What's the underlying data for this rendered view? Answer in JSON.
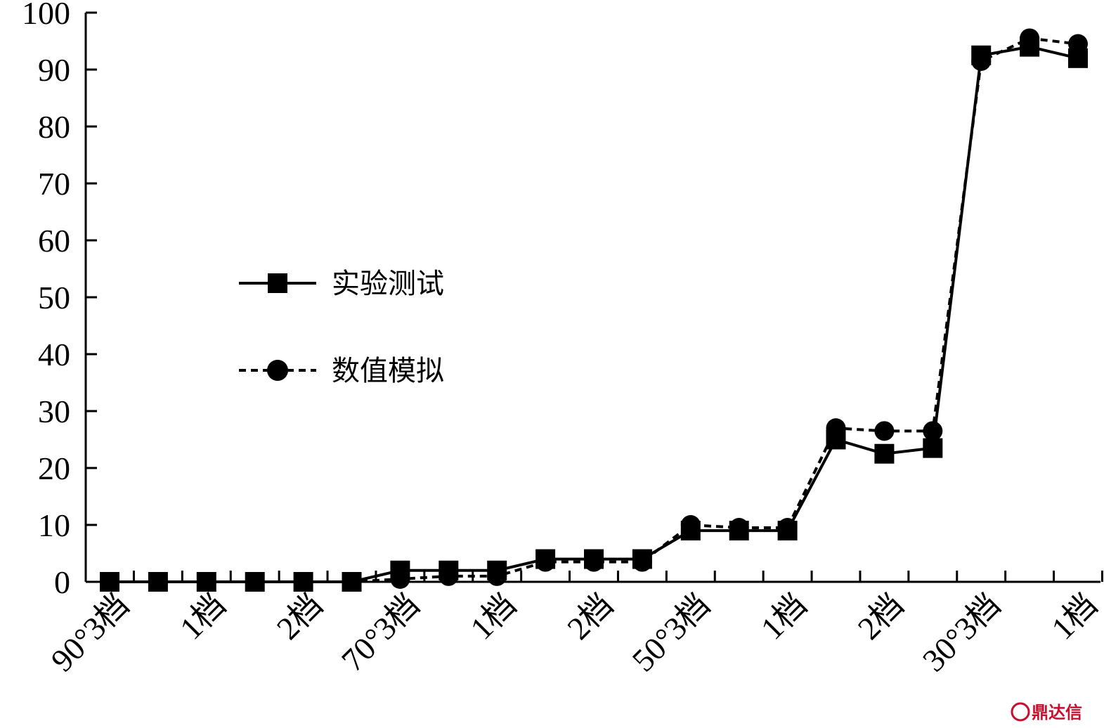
{
  "chart_data": {
    "type": "line",
    "title": "",
    "xlabel": "",
    "ylabel": "",
    "ylim": [
      0,
      100
    ],
    "yticks": [
      0,
      10,
      20,
      30,
      40,
      50,
      60,
      70,
      80,
      90,
      100
    ],
    "xtick_labels": [
      "90°3档",
      "1档",
      "2档",
      "70°3档",
      "1档",
      "2档",
      "50°3档",
      "1档",
      "2档",
      "30°3档",
      "1档"
    ],
    "grid": false,
    "legend_position": "center-left",
    "series": [
      {
        "name": "实验测试",
        "marker": "square",
        "line_style": "solid",
        "color": "#000000",
        "values": [
          0,
          0,
          0,
          0,
          0,
          0,
          2,
          2,
          2,
          4,
          4,
          4,
          9,
          9,
          9,
          25,
          22.5,
          23.5,
          92.5,
          94,
          92
        ]
      },
      {
        "name": "数值模拟",
        "marker": "circle",
        "line_style": "dashed",
        "color": "#000000",
        "values": [
          0,
          0,
          0,
          0,
          0,
          0,
          0.5,
          1,
          1,
          3.5,
          3.5,
          3.5,
          10,
          9.5,
          9.5,
          27,
          26.5,
          26.5,
          91.5,
          95.5,
          94.5
        ]
      }
    ]
  },
  "watermark": {
    "text": "鼎达信",
    "color": "#c8102e"
  }
}
